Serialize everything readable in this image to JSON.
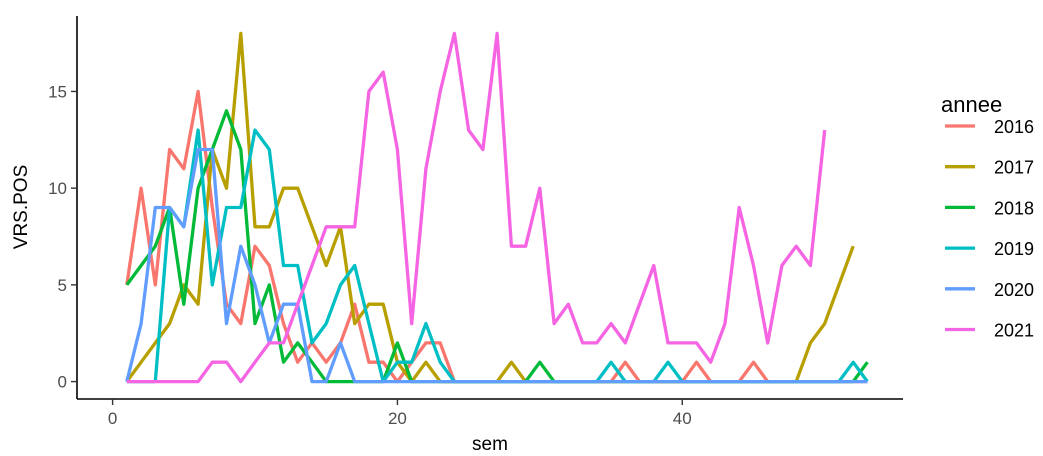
{
  "chart_data": {
    "type": "line",
    "xlabel": "sem",
    "ylabel": "VRS.POS",
    "xlim": [
      -2.5,
      55.5
    ],
    "ylim": [
      -0.9,
      18.9
    ],
    "x_ticks": [
      0,
      20,
      40
    ],
    "y_ticks": [
      0,
      5,
      10,
      15
    ],
    "grid": false,
    "legend": {
      "title": "annee",
      "position": "right"
    },
    "series": [
      {
        "name": "2016",
        "color": "#F8766D",
        "x": [
          1,
          2,
          3,
          4,
          5,
          6,
          7,
          8,
          9,
          10,
          11,
          12,
          13,
          14,
          15,
          16,
          17,
          18,
          19,
          20,
          21,
          22,
          23,
          24,
          25,
          26,
          27,
          28,
          29,
          30,
          31,
          32,
          33,
          34,
          35,
          36,
          37,
          38,
          39,
          40,
          41,
          42,
          43,
          44,
          45,
          46,
          47,
          48,
          49,
          50,
          51,
          52,
          53
        ],
        "y": [
          5,
          10,
          5,
          12,
          11,
          15,
          9,
          4,
          3,
          7,
          6,
          3,
          1,
          2,
          1,
          2,
          4,
          1,
          1,
          0,
          1,
          2,
          2,
          0,
          0,
          0,
          0,
          0,
          0,
          0,
          0,
          0,
          0,
          0,
          0,
          1,
          0,
          0,
          0,
          0,
          1,
          0,
          0,
          0,
          1,
          0,
          0,
          0,
          0,
          0,
          0,
          0,
          0
        ]
      },
      {
        "name": "2017",
        "color": "#B79F00",
        "x": [
          1,
          2,
          3,
          4,
          5,
          6,
          7,
          8,
          9,
          10,
          11,
          12,
          13,
          14,
          15,
          16,
          17,
          18,
          19,
          20,
          21,
          22,
          23,
          24,
          25,
          26,
          27,
          28,
          29,
          30,
          31,
          32,
          33,
          34,
          35,
          36,
          37,
          38,
          39,
          40,
          41,
          42,
          43,
          44,
          45,
          46,
          47,
          48,
          49,
          50,
          51,
          52
        ],
        "y": [
          0,
          1,
          2,
          3,
          5,
          4,
          12,
          10,
          18,
          8,
          8,
          10,
          10,
          8,
          6,
          8,
          3,
          4,
          4,
          1,
          0,
          1,
          0,
          0,
          0,
          0,
          0,
          1,
          0,
          0,
          0,
          0,
          0,
          0,
          0,
          0,
          0,
          0,
          0,
          0,
          0,
          0,
          0,
          0,
          0,
          0,
          0,
          0,
          2,
          3,
          5,
          7
        ]
      },
      {
        "name": "2018",
        "color": "#00BA38",
        "x": [
          1,
          2,
          3,
          4,
          5,
          6,
          7,
          8,
          9,
          10,
          11,
          12,
          13,
          14,
          15,
          16,
          17,
          18,
          19,
          20,
          21,
          22,
          23,
          24,
          25,
          26,
          27,
          28,
          29,
          30,
          31,
          32,
          33,
          34,
          35,
          36,
          37,
          38,
          39,
          40,
          41,
          42,
          43,
          44,
          45,
          46,
          47,
          48,
          49,
          50,
          51,
          52,
          53
        ],
        "y": [
          5,
          6,
          7,
          9,
          4,
          10,
          12,
          14,
          12,
          3,
          5,
          1,
          2,
          1,
          0,
          0,
          0,
          0,
          0,
          2,
          0,
          0,
          0,
          0,
          0,
          0,
          0,
          0,
          0,
          1,
          0,
          0,
          0,
          0,
          0,
          0,
          0,
          0,
          0,
          0,
          0,
          0,
          0,
          0,
          0,
          0,
          0,
          0,
          0,
          0,
          0,
          0,
          1
        ]
      },
      {
        "name": "2019",
        "color": "#00BFC4",
        "x": [
          1,
          2,
          3,
          4,
          5,
          6,
          7,
          8,
          9,
          10,
          11,
          12,
          13,
          14,
          15,
          16,
          17,
          18,
          19,
          20,
          21,
          22,
          23,
          24,
          25,
          26,
          27,
          28,
          29,
          30,
          31,
          32,
          33,
          34,
          35,
          36,
          37,
          38,
          39,
          40,
          41,
          42,
          43,
          44,
          45,
          46,
          47,
          48,
          49,
          50,
          51,
          52,
          53
        ],
        "y": [
          0,
          0,
          0,
          9,
          8,
          13,
          5,
          9,
          9,
          13,
          12,
          6,
          6,
          2,
          3,
          5,
          6,
          3,
          0,
          1,
          1,
          3,
          1,
          0,
          0,
          0,
          0,
          0,
          0,
          0,
          0,
          0,
          0,
          0,
          1,
          0,
          0,
          0,
          1,
          0,
          0,
          0,
          0,
          0,
          0,
          0,
          0,
          0,
          0,
          0,
          0,
          1,
          0
        ]
      },
      {
        "name": "2020",
        "color": "#619CFF",
        "x": [
          1,
          2,
          3,
          4,
          5,
          6,
          7,
          8,
          9,
          10,
          11,
          12,
          13,
          14,
          15,
          16,
          17,
          18,
          19,
          20,
          21,
          22,
          23,
          24,
          25,
          26,
          27,
          28,
          29,
          30,
          31,
          32,
          33,
          34,
          35,
          36,
          37,
          38,
          39,
          40,
          41,
          42,
          43,
          44,
          45,
          46,
          47,
          48,
          49,
          50,
          51,
          52,
          53
        ],
        "y": [
          0,
          3,
          9,
          9,
          8,
          12,
          12,
          3,
          7,
          5,
          2,
          4,
          4,
          0,
          0,
          2,
          0,
          0,
          0,
          0,
          0,
          0,
          0,
          0,
          0,
          0,
          0,
          0,
          0,
          0,
          0,
          0,
          0,
          0,
          0,
          0,
          0,
          0,
          0,
          0,
          0,
          0,
          0,
          0,
          0,
          0,
          0,
          0,
          0,
          0,
          0,
          0,
          0
        ]
      },
      {
        "name": "2021",
        "color": "#F564E3",
        "x": [
          1,
          2,
          3,
          4,
          5,
          6,
          7,
          8,
          9,
          10,
          11,
          12,
          13,
          14,
          15,
          16,
          17,
          18,
          19,
          20,
          21,
          22,
          23,
          24,
          25,
          26,
          27,
          28,
          29,
          30,
          31,
          32,
          33,
          34,
          35,
          36,
          37,
          38,
          39,
          40,
          41,
          42,
          43,
          44,
          45,
          46,
          47,
          48,
          49,
          50
        ],
        "y": [
          0,
          0,
          0,
          0,
          0,
          0,
          1,
          1,
          0,
          1,
          2,
          2,
          4,
          6,
          8,
          8,
          8,
          15,
          16,
          12,
          3,
          11,
          15,
          18,
          13,
          12,
          18,
          7,
          7,
          10,
          3,
          4,
          2,
          2,
          3,
          2,
          4,
          6,
          2,
          2,
          2,
          1,
          3,
          9,
          6,
          2,
          6,
          7,
          6,
          13
        ]
      }
    ]
  }
}
